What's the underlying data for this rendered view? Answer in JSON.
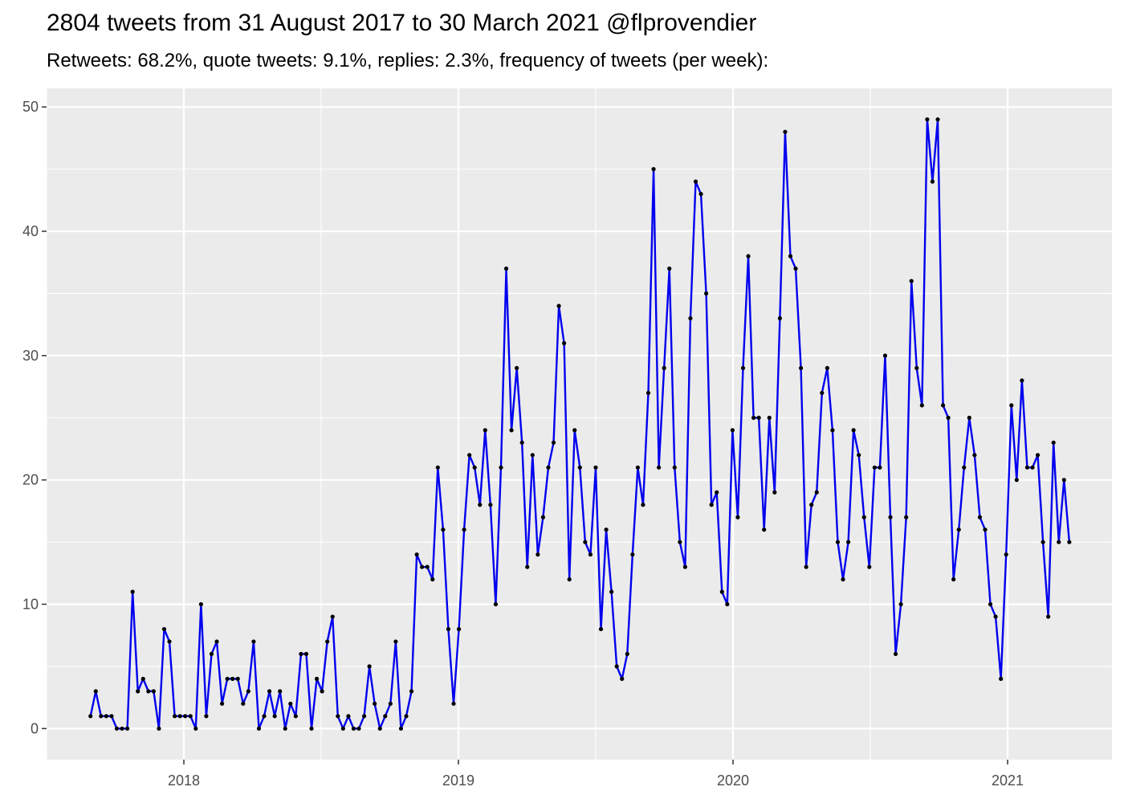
{
  "chart_data": {
    "type": "line",
    "title": "2804 tweets from 31 August 2017 to 30 March 2021 @flprovendier",
    "subtitle": "Retweets: 68.2%, quote tweets: 9.1%, replies: 2.3%, frequency of tweets (per week):",
    "xlabel": "",
    "ylabel": "",
    "x_unit": "decimal year",
    "xlim": [
      2017.5,
      2021.38
    ],
    "ylim": [
      -2.5,
      51.5
    ],
    "x_ticks": [
      2018,
      2019,
      2020,
      2021
    ],
    "x_tick_labels": [
      "2018",
      "2019",
      "2020",
      "2021"
    ],
    "y_ticks": [
      0,
      10,
      20,
      30,
      40,
      50
    ],
    "y_tick_labels": [
      "0",
      "10",
      "20",
      "30",
      "40",
      "50"
    ],
    "grid": true,
    "legend": "none",
    "colors": {
      "line": "#0000ee",
      "point": "#000000",
      "panel": "#ebebeb",
      "grid": "#ffffff"
    },
    "series": [
      {
        "x_start": 2017.66,
        "x_step_weeks": 1,
        "values": [
          1,
          3,
          1,
          1,
          1,
          0,
          0,
          0,
          11,
          3,
          4,
          3,
          3,
          0,
          8,
          7,
          1,
          1,
          1,
          1,
          0,
          10,
          1,
          6,
          7,
          2,
          4,
          4,
          4,
          2,
          3,
          7,
          0,
          1,
          3,
          1,
          3,
          0,
          2,
          1,
          6,
          6,
          0,
          4,
          3,
          7,
          9,
          1,
          0,
          1,
          0,
          0,
          1,
          5,
          2,
          0,
          1,
          2,
          7,
          0,
          1,
          3,
          14,
          13,
          13,
          12,
          21,
          16,
          8,
          2,
          8,
          16,
          22,
          21,
          18,
          24,
          18,
          10,
          21,
          37,
          24,
          29,
          23,
          13,
          22,
          14,
          17,
          21,
          23,
          34,
          31,
          12,
          24,
          21,
          15,
          14,
          21,
          8,
          16,
          11,
          5,
          4,
          6,
          14,
          21,
          18,
          27,
          45,
          21,
          29,
          37,
          21,
          15,
          13,
          33,
          44,
          43,
          35,
          18,
          19,
          11,
          10,
          24,
          17,
          29,
          38,
          25,
          25,
          16,
          25,
          19,
          33,
          48,
          38,
          37,
          29,
          13,
          18,
          19,
          27,
          29,
          24,
          15,
          12,
          15,
          24,
          22,
          17,
          13,
          21,
          21,
          30,
          17,
          6,
          10,
          17,
          36,
          29,
          26,
          49,
          44,
          49,
          26,
          25,
          12,
          16,
          21,
          25,
          22,
          17,
          16,
          10,
          9,
          4,
          14,
          26,
          20,
          28,
          21,
          21,
          22,
          15,
          9,
          23,
          15,
          20,
          15
        ]
      }
    ]
  }
}
